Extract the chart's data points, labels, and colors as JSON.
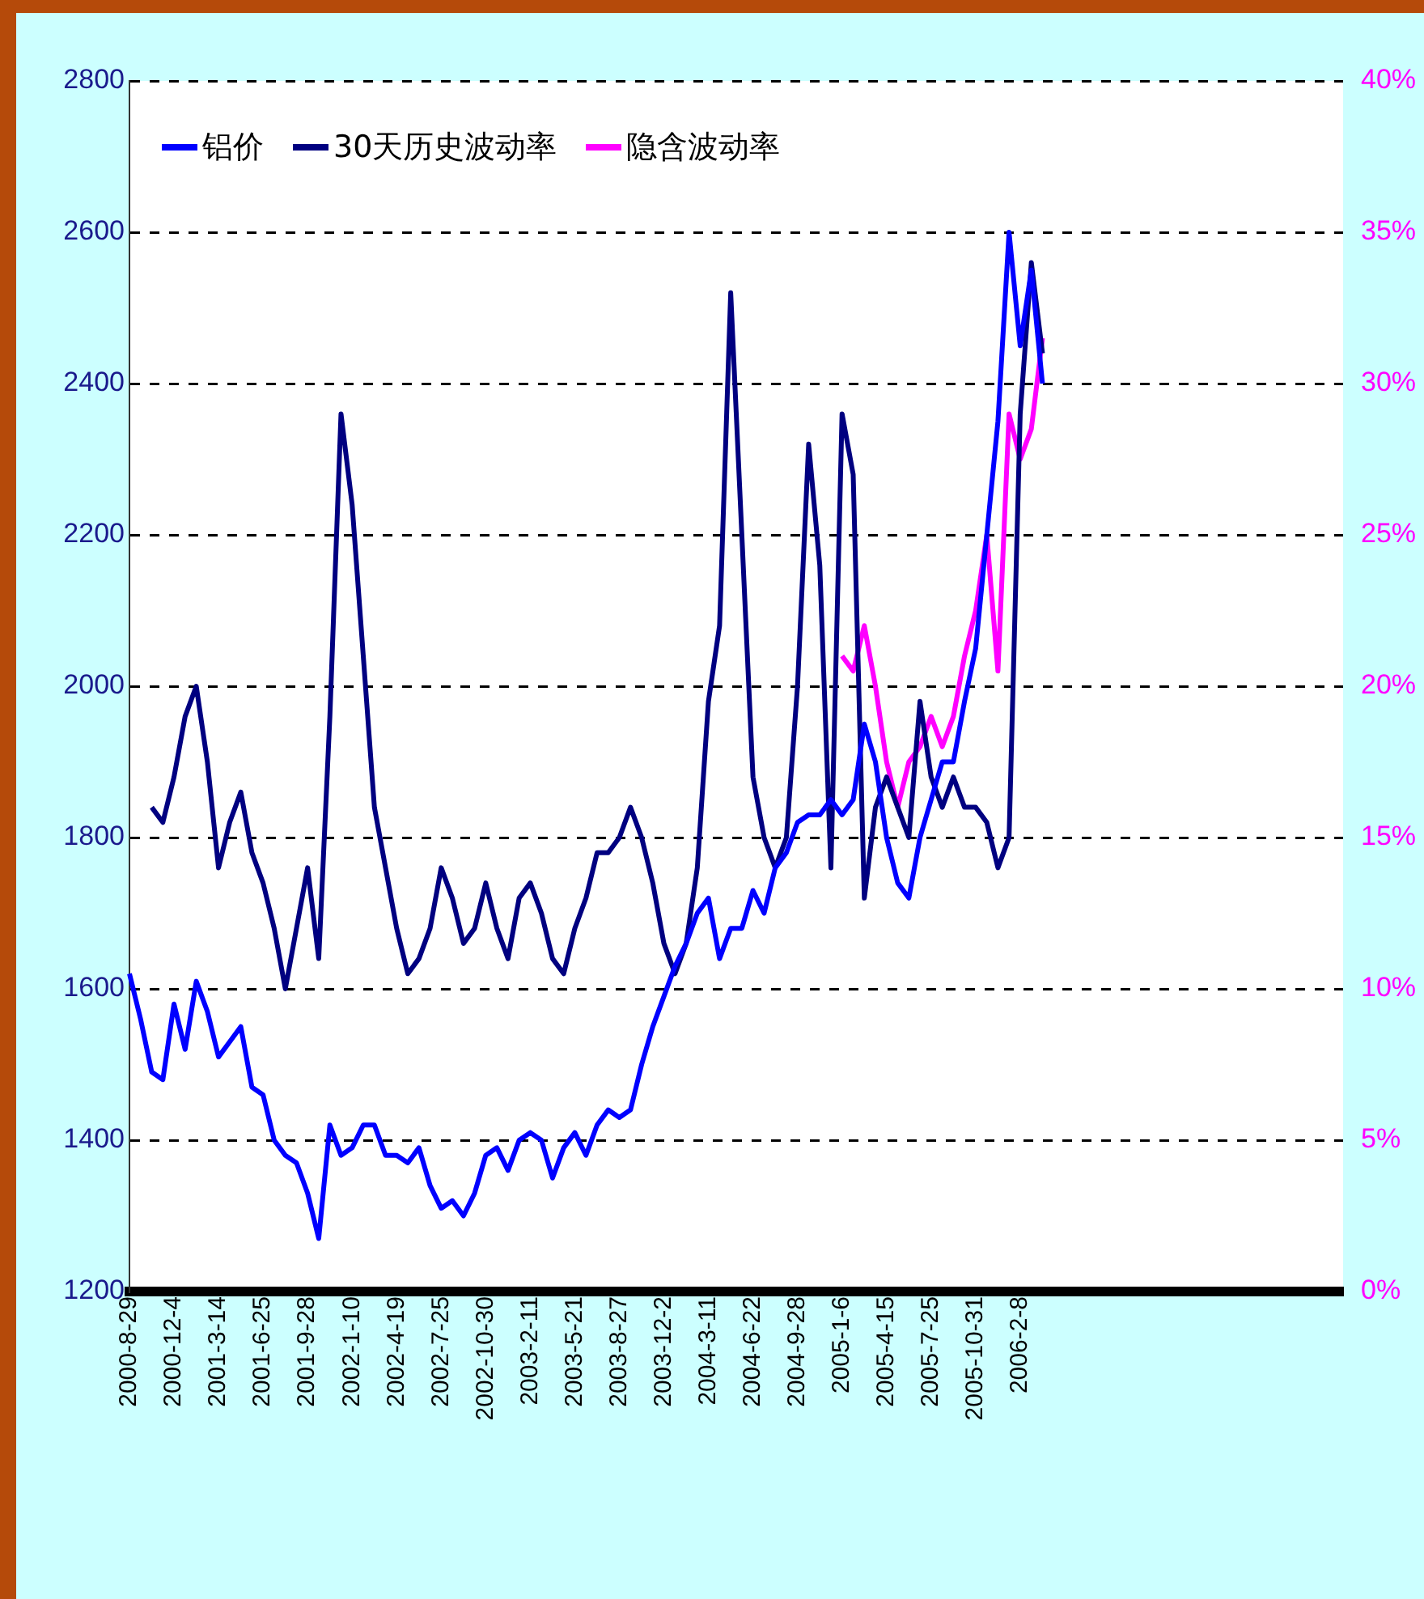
{
  "chart_data": {
    "type": "line",
    "categories": [
      "2000-8-29",
      null,
      null,
      null,
      "2000-12-4",
      null,
      null,
      null,
      "2001-3-14",
      null,
      null,
      null,
      "2001-6-25",
      null,
      null,
      null,
      "2001-9-28",
      null,
      null,
      null,
      "2002-1-10",
      null,
      null,
      null,
      "2002-4-19",
      null,
      null,
      null,
      "2002-7-25",
      null,
      null,
      null,
      "2002-10-30",
      null,
      null,
      null,
      "2003-2-11",
      null,
      null,
      null,
      "2003-5-21",
      null,
      null,
      null,
      "2003-8-27",
      null,
      null,
      null,
      "2003-12-2",
      null,
      null,
      null,
      "2004-3-11",
      null,
      null,
      null,
      "2004-6-22",
      null,
      null,
      null,
      "2004-9-28",
      null,
      null,
      null,
      "2005-1-6",
      null,
      null,
      null,
      "2005-4-15",
      null,
      null,
      null,
      "2005-7-25",
      null,
      null,
      null,
      "2005-10-31",
      null,
      null,
      null,
      "2006-2-8",
      null,
      null,
      null,
      null,
      null,
      null,
      null,
      null,
      null,
      null,
      null,
      null,
      null,
      null,
      null,
      null,
      null,
      null,
      null,
      null,
      null,
      null,
      null,
      null,
      null,
      null,
      null,
      null,
      null
    ],
    "series": [
      {
        "name": "铝价",
        "color": "#0000ff",
        "values": [
          1620,
          1560,
          1490,
          1480,
          1580,
          1520,
          1610,
          1570,
          1510,
          1530,
          1550,
          1470,
          1460,
          1400,
          1380,
          1370,
          1330,
          1270,
          1420,
          1380,
          1390,
          1420,
          1420,
          1380,
          1380,
          1370,
          1390,
          1340,
          1310,
          1320,
          1300,
          1330,
          1380,
          1390,
          1360,
          1400,
          1410,
          1400,
          1350,
          1390,
          1410,
          1380,
          1420,
          1440,
          1430,
          1440,
          1500,
          1550,
          1590,
          1630,
          1660,
          1700,
          1720,
          1640,
          1680,
          1680,
          1730,
          1700,
          1760,
          1780,
          1820,
          1830,
          1830,
          1850,
          1830,
          1850,
          1950,
          1900,
          1800,
          1740,
          1720,
          1800,
          1850,
          1900,
          1900,
          1980,
          2050,
          2200,
          2350,
          2600,
          2450,
          2550,
          2400,
          null,
          null,
          null,
          null,
          null,
          null,
          null,
          null,
          null,
          null,
          null,
          null,
          null,
          null,
          null,
          null,
          null,
          null,
          null,
          null,
          null,
          null,
          null,
          null,
          null,
          null,
          null
        ]
      },
      {
        "name": "30天历史波动率",
        "color": "#000080",
        "axis": "y2",
        "values": [
          null,
          null,
          16,
          15.5,
          17,
          19,
          20,
          17.5,
          14,
          15.5,
          16.5,
          14.5,
          13.5,
          12,
          10,
          12,
          14,
          11,
          19,
          29,
          26,
          21,
          16,
          14,
          12,
          10.5,
          11,
          12,
          14,
          13,
          11.5,
          12,
          13.5,
          12,
          11,
          13,
          13.5,
          12.5,
          11,
          10.5,
          12,
          13,
          14.5,
          14.5,
          15,
          16,
          15,
          13.5,
          11.5,
          10.5,
          11.5,
          14,
          19.5,
          22,
          33,
          25,
          17,
          15,
          14,
          15,
          20,
          28,
          24,
          14,
          29,
          27,
          13,
          16,
          17,
          16,
          15,
          19.5,
          17,
          16,
          17,
          16,
          16,
          15.5,
          14,
          15,
          29,
          34,
          31,
          null,
          null,
          null,
          null,
          null,
          null,
          null,
          null,
          null,
          null,
          null,
          null,
          null,
          null,
          null,
          null,
          null,
          null,
          null,
          null,
          null,
          null,
          null,
          null,
          null,
          null,
          null
        ]
      },
      {
        "name": "隐含波动率",
        "color": "#ff00ff",
        "axis": "y2",
        "values": [
          null,
          null,
          null,
          null,
          null,
          null,
          null,
          null,
          null,
          null,
          null,
          null,
          null,
          null,
          null,
          null,
          null,
          null,
          null,
          null,
          null,
          null,
          null,
          null,
          null,
          null,
          null,
          null,
          null,
          null,
          null,
          null,
          null,
          null,
          null,
          null,
          null,
          null,
          null,
          null,
          null,
          null,
          null,
          null,
          null,
          null,
          null,
          null,
          null,
          null,
          null,
          null,
          null,
          null,
          null,
          null,
          null,
          null,
          null,
          null,
          null,
          null,
          null,
          null,
          21,
          20.5,
          22,
          20,
          17.5,
          16,
          17.5,
          18,
          19,
          18,
          19,
          21,
          22.5,
          25,
          20.5,
          29,
          27.5,
          28.5,
          31.5,
          null,
          null,
          null,
          null,
          null,
          null,
          null,
          null,
          null,
          null,
          null,
          null,
          null,
          null,
          null,
          null,
          null,
          null,
          null,
          null,
          null,
          null,
          null,
          null,
          null,
          null,
          null
        ]
      }
    ],
    "ylim": [
      1200,
      2800
    ],
    "yticks": [
      1200,
      1400,
      1600,
      1800,
      2000,
      2200,
      2400,
      2600,
      2800
    ],
    "y2lim": [
      0,
      40
    ],
    "y2ticks": [
      {
        "value": 0,
        "label": "0%"
      },
      {
        "value": 5,
        "label": "5%"
      },
      {
        "value": 10,
        "label": "10%"
      },
      {
        "value": 15,
        "label": "15%"
      },
      {
        "value": 20,
        "label": "20%"
      },
      {
        "value": 25,
        "label": "25%"
      },
      {
        "value": 30,
        "label": "30%"
      },
      {
        "value": 35,
        "label": "35%"
      },
      {
        "value": 40,
        "label": "40%"
      }
    ],
    "grid": "y",
    "legend": "top left",
    "marker": "none",
    "line_style": "solid"
  }
}
